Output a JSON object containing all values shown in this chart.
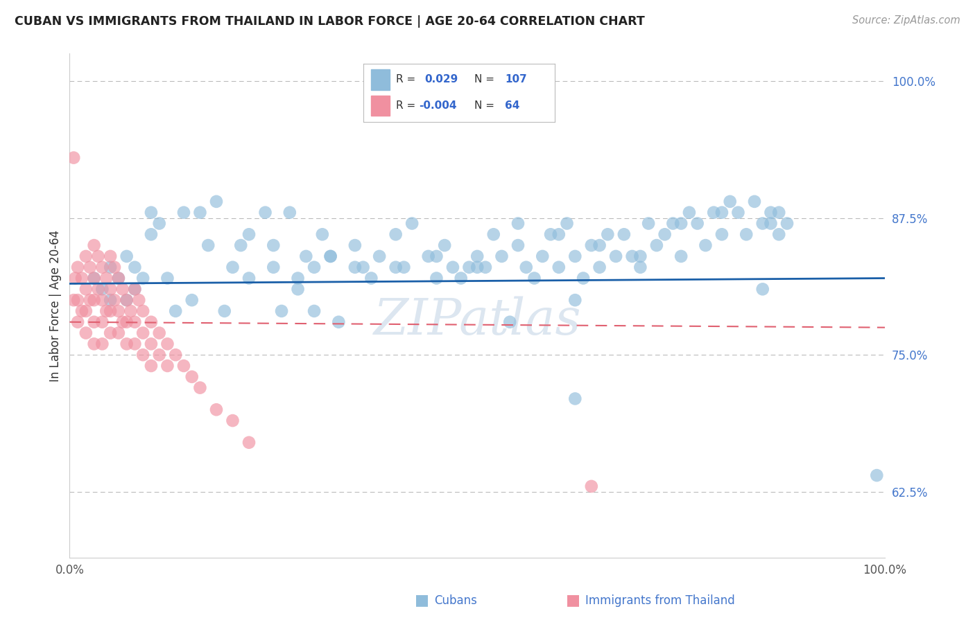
{
  "title": "CUBAN VS IMMIGRANTS FROM THAILAND IN LABOR FORCE | AGE 20-64 CORRELATION CHART",
  "source": "Source: ZipAtlas.com",
  "ylabel": "In Labor Force | Age 20-64",
  "yticks": [
    0.625,
    0.75,
    0.875,
    1.0
  ],
  "ytick_labels": [
    "62.5%",
    "75.0%",
    "87.5%",
    "100.0%"
  ],
  "xtick_labels": [
    "0.0%",
    "100.0%"
  ],
  "xlim": [
    0.0,
    1.0
  ],
  "ylim": [
    0.565,
    1.025
  ],
  "blue_color": "#8fbcdb",
  "pink_color": "#f090a0",
  "blue_line_color": "#1a5fa8",
  "pink_line_color": "#e06070",
  "background_color": "#ffffff",
  "grid_color": "#bbbbbb",
  "title_color": "#222222",
  "source_color": "#999999",
  "watermark_color": "#dce6f0",
  "blue_x": [
    0.03,
    0.04,
    0.05,
    0.05,
    0.06,
    0.07,
    0.07,
    0.08,
    0.08,
    0.09,
    0.1,
    0.1,
    0.11,
    0.12,
    0.13,
    0.14,
    0.15,
    0.16,
    0.17,
    0.18,
    0.19,
    0.2,
    0.21,
    0.22,
    0.24,
    0.25,
    0.26,
    0.27,
    0.28,
    0.29,
    0.3,
    0.31,
    0.32,
    0.33,
    0.35,
    0.36,
    0.37,
    0.38,
    0.4,
    0.41,
    0.42,
    0.44,
    0.45,
    0.46,
    0.47,
    0.48,
    0.49,
    0.5,
    0.51,
    0.52,
    0.53,
    0.54,
    0.55,
    0.56,
    0.57,
    0.58,
    0.59,
    0.6,
    0.61,
    0.62,
    0.63,
    0.64,
    0.65,
    0.66,
    0.67,
    0.68,
    0.69,
    0.7,
    0.71,
    0.72,
    0.73,
    0.74,
    0.75,
    0.76,
    0.77,
    0.78,
    0.79,
    0.8,
    0.81,
    0.82,
    0.83,
    0.84,
    0.85,
    0.86,
    0.87,
    0.88,
    0.62,
    0.22,
    0.25,
    0.3,
    0.35,
    0.4,
    0.28,
    0.32,
    0.45,
    0.5,
    0.55,
    0.6,
    0.65,
    0.7,
    0.75,
    0.8,
    0.85,
    0.86,
    0.87,
    0.62,
    0.99
  ],
  "blue_y": [
    0.82,
    0.81,
    0.83,
    0.8,
    0.82,
    0.84,
    0.8,
    0.83,
    0.81,
    0.82,
    0.88,
    0.86,
    0.87,
    0.82,
    0.79,
    0.88,
    0.8,
    0.88,
    0.85,
    0.89,
    0.79,
    0.83,
    0.85,
    0.82,
    0.88,
    0.85,
    0.79,
    0.88,
    0.82,
    0.84,
    0.83,
    0.86,
    0.84,
    0.78,
    0.85,
    0.83,
    0.82,
    0.84,
    0.86,
    0.83,
    0.87,
    0.84,
    0.82,
    0.85,
    0.83,
    0.82,
    0.83,
    0.84,
    0.83,
    0.86,
    0.84,
    0.78,
    0.85,
    0.83,
    0.82,
    0.84,
    0.86,
    0.83,
    0.87,
    0.84,
    0.82,
    0.85,
    0.83,
    0.86,
    0.84,
    0.86,
    0.84,
    0.83,
    0.87,
    0.85,
    0.86,
    0.87,
    0.84,
    0.88,
    0.87,
    0.85,
    0.88,
    0.86,
    0.89,
    0.88,
    0.86,
    0.89,
    0.87,
    0.88,
    0.86,
    0.87,
    0.8,
    0.86,
    0.83,
    0.79,
    0.83,
    0.83,
    0.81,
    0.84,
    0.84,
    0.83,
    0.87,
    0.86,
    0.85,
    0.84,
    0.87,
    0.88,
    0.81,
    0.87,
    0.88,
    0.71,
    0.64
  ],
  "pink_x": [
    0.005,
    0.007,
    0.01,
    0.01,
    0.01,
    0.015,
    0.015,
    0.02,
    0.02,
    0.02,
    0.02,
    0.025,
    0.025,
    0.03,
    0.03,
    0.03,
    0.03,
    0.03,
    0.035,
    0.035,
    0.04,
    0.04,
    0.04,
    0.04,
    0.045,
    0.045,
    0.05,
    0.05,
    0.05,
    0.05,
    0.055,
    0.055,
    0.06,
    0.06,
    0.06,
    0.065,
    0.065,
    0.07,
    0.07,
    0.07,
    0.075,
    0.08,
    0.08,
    0.08,
    0.085,
    0.09,
    0.09,
    0.09,
    0.1,
    0.1,
    0.1,
    0.11,
    0.11,
    0.12,
    0.12,
    0.13,
    0.14,
    0.15,
    0.16,
    0.18,
    0.2,
    0.22,
    0.64,
    0.005
  ],
  "pink_y": [
    0.8,
    0.82,
    0.83,
    0.8,
    0.78,
    0.82,
    0.79,
    0.84,
    0.81,
    0.79,
    0.77,
    0.83,
    0.8,
    0.85,
    0.82,
    0.8,
    0.78,
    0.76,
    0.84,
    0.81,
    0.83,
    0.8,
    0.78,
    0.76,
    0.82,
    0.79,
    0.84,
    0.81,
    0.79,
    0.77,
    0.83,
    0.8,
    0.82,
    0.79,
    0.77,
    0.81,
    0.78,
    0.8,
    0.78,
    0.76,
    0.79,
    0.81,
    0.78,
    0.76,
    0.8,
    0.79,
    0.77,
    0.75,
    0.78,
    0.76,
    0.74,
    0.77,
    0.75,
    0.76,
    0.74,
    0.75,
    0.74,
    0.73,
    0.72,
    0.7,
    0.69,
    0.67,
    0.63,
    0.93
  ],
  "blue_line_y": [
    0.815,
    0.82
  ],
  "pink_line_y": [
    0.78,
    0.775
  ],
  "legend_blue_r": "0.029",
  "legend_blue_n": "107",
  "legend_pink_r": "-0.004",
  "legend_pink_n": "64"
}
